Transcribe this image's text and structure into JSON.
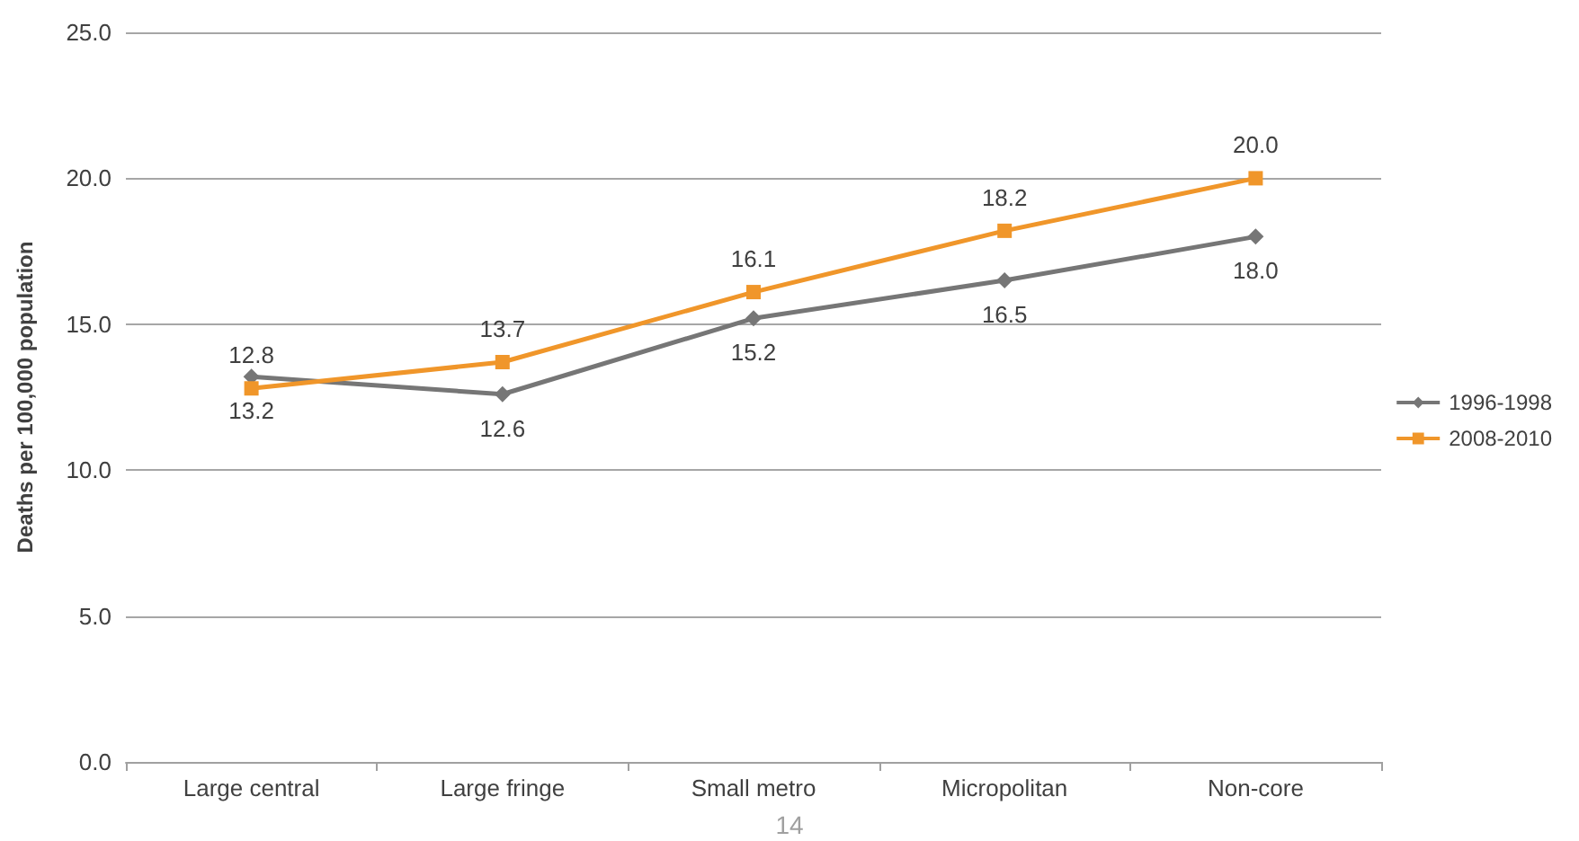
{
  "chart_data": {
    "type": "line",
    "ylabel": "Deaths per 100,000 population",
    "categories": [
      "Large central",
      "Large fringe",
      "Small metro",
      "Micropolitan",
      "Non-core"
    ],
    "series": [
      {
        "name": "1996-1998",
        "color": "#767676",
        "marker": "diamond",
        "values": [
          13.2,
          12.6,
          15.2,
          16.5,
          18.0
        ],
        "value_labels": [
          "13.2",
          "12.6",
          "15.2",
          "16.5",
          "18.0"
        ]
      },
      {
        "name": "2008-2010",
        "color": "#f0962a",
        "marker": "square",
        "values": [
          12.8,
          13.7,
          16.1,
          18.2,
          20.0
        ],
        "value_labels": [
          "12.8",
          "13.7",
          "16.1",
          "18.2",
          "20.0"
        ]
      }
    ],
    "ylim": [
      0,
      25
    ],
    "yticks": [
      {
        "value": 0,
        "label": "0.0"
      },
      {
        "value": 5,
        "label": "5.0"
      },
      {
        "value": 10,
        "label": "10.0"
      },
      {
        "value": 15,
        "label": "15.0"
      },
      {
        "value": 20,
        "label": "20.0"
      },
      {
        "value": 25,
        "label": "25.0"
      }
    ],
    "grid": "y",
    "legend": "right",
    "annotations": [
      "14"
    ]
  }
}
